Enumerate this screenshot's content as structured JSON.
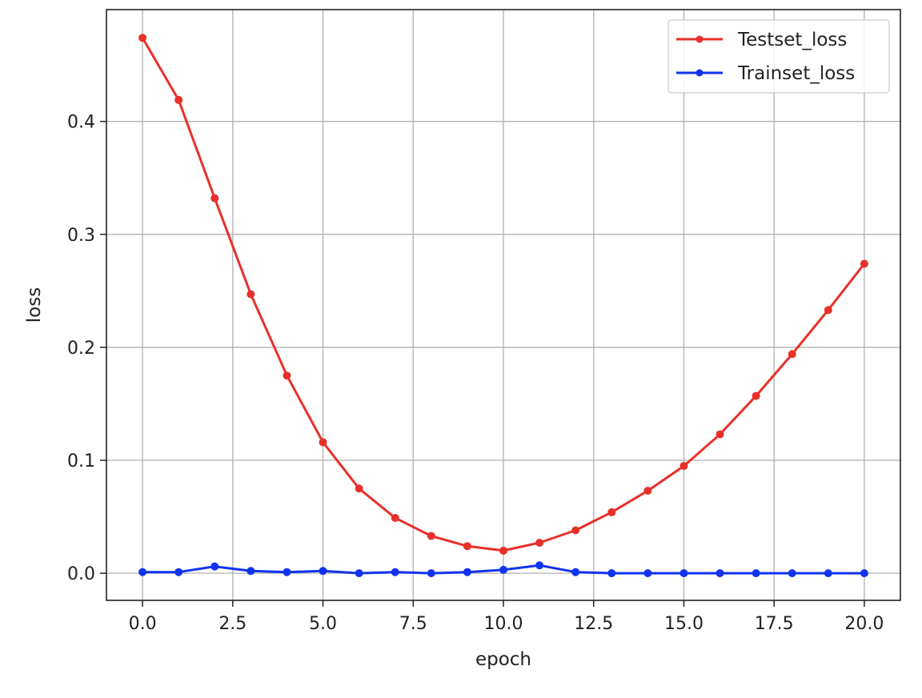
{
  "chart_data": {
    "type": "line",
    "title": "",
    "xlabel": "epoch",
    "ylabel": "loss",
    "xlim": [
      -1.0,
      21.0
    ],
    "ylim": [
      -0.024,
      0.499
    ],
    "xticks": [
      0.0,
      2.5,
      5.0,
      7.5,
      10.0,
      12.5,
      15.0,
      17.5,
      20.0
    ],
    "xtick_labels": [
      "0.0",
      "2.5",
      "5.0",
      "7.5",
      "10.0",
      "12.5",
      "15.0",
      "17.5",
      "20.0"
    ],
    "yticks": [
      0.0,
      0.1,
      0.2,
      0.3,
      0.4
    ],
    "ytick_labels": [
      "0.0",
      "0.1",
      "0.2",
      "0.3",
      "0.4"
    ],
    "grid": true,
    "legend_position": "top-right",
    "x": [
      0,
      1,
      2,
      3,
      4,
      5,
      6,
      7,
      8,
      9,
      10,
      11,
      12,
      13,
      14,
      15,
      16,
      17,
      18,
      19,
      20
    ],
    "series": [
      {
        "name": "Testset_loss",
        "color": "#e8302a",
        "marker": "circle",
        "values": [
          0.474,
          0.419,
          0.332,
          0.247,
          0.175,
          0.116,
          0.075,
          0.049,
          0.033,
          0.024,
          0.02,
          0.027,
          0.038,
          0.054,
          0.073,
          0.095,
          0.123,
          0.157,
          0.194,
          0.233,
          0.274
        ]
      },
      {
        "name": "Trainset_loss",
        "color": "#1133ee",
        "marker": "circle",
        "values": [
          0.001,
          0.001,
          0.006,
          0.002,
          0.001,
          0.002,
          0.0,
          0.001,
          0.0,
          0.001,
          0.003,
          0.007,
          0.001,
          0.0,
          0.0,
          0.0,
          0.0,
          0.0,
          0.0,
          0.0,
          0.0
        ]
      }
    ]
  }
}
